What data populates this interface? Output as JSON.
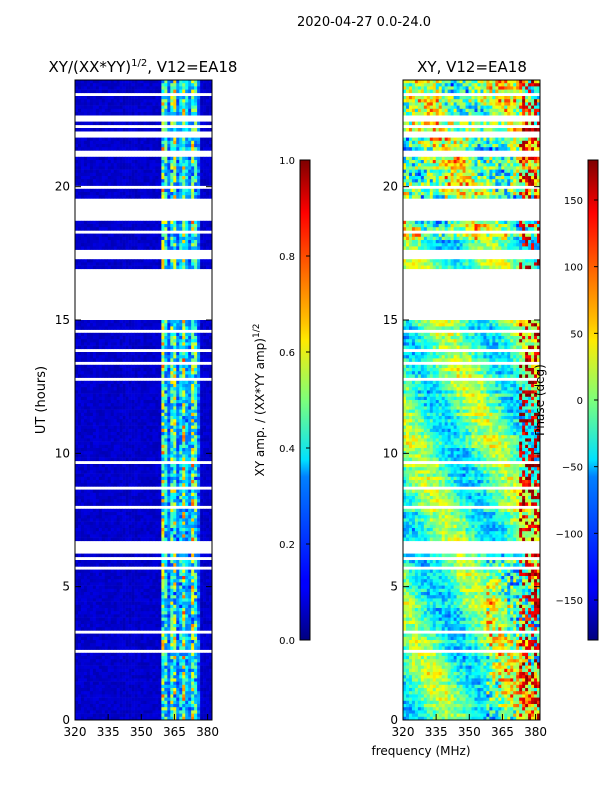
{
  "figure_title": "2020-04-27 0.0-24.0",
  "shared_xlabel": "frequency (MHz)",
  "chart_data": [
    {
      "type": "heatmap",
      "title": "XY/(XX*YY)",
      "title_exponent": "1/2",
      "title_suffix": ", V12=EA18",
      "xlabel": "",
      "ylabel": "UT (hours)",
      "xlim": [
        320,
        382
      ],
      "ylim": [
        0,
        24
      ],
      "x_ticks": [
        320,
        335,
        350,
        365,
        380
      ],
      "y_ticks": [
        0,
        5,
        10,
        15,
        20
      ],
      "colorbar": {
        "label": "XY amp. / (XX*YY amp)",
        "label_exponent": "1/2",
        "range": [
          0.0,
          1.0
        ],
        "ticks": [
          0.0,
          0.2,
          0.4,
          0.6,
          0.8,
          1.0
        ],
        "tick_labels": [
          "0.0",
          "0.2",
          "0.4",
          "0.6",
          "0.8",
          "1.0"
        ],
        "colormap": "jet"
      },
      "flagged_time_ranges": [
        [
          15.0,
          16.9
        ],
        [
          17.3,
          17.6
        ],
        [
          18.7,
          19.6
        ],
        [
          19.9,
          20.0
        ],
        [
          6.2,
          6.6
        ]
      ],
      "active_frequency_range": [
        359,
        377
      ],
      "background_value": 0.05,
      "grid": false
    },
    {
      "type": "heatmap",
      "title": "XY, V12=EA18",
      "xlabel": "",
      "ylabel": "",
      "xlim": [
        320,
        382
      ],
      "ylim": [
        0,
        24
      ],
      "x_ticks": [
        320,
        335,
        350,
        365,
        380
      ],
      "y_ticks": [
        0,
        5,
        10,
        15,
        20
      ],
      "colorbar": {
        "label": "Phase (deg)",
        "range": [
          -180,
          180
        ],
        "ticks": [
          -150,
          -100,
          -50,
          0,
          50,
          100,
          150
        ],
        "tick_labels": [
          "−150",
          "−100",
          "−50",
          "0",
          "50",
          "100",
          "150"
        ],
        "colormap": "jet"
      },
      "flagged_time_ranges": [
        [
          15.0,
          16.9
        ],
        [
          17.3,
          17.6
        ],
        [
          18.7,
          19.6
        ],
        [
          19.9,
          20.0
        ],
        [
          6.2,
          6.6
        ]
      ],
      "grid": false
    }
  ]
}
